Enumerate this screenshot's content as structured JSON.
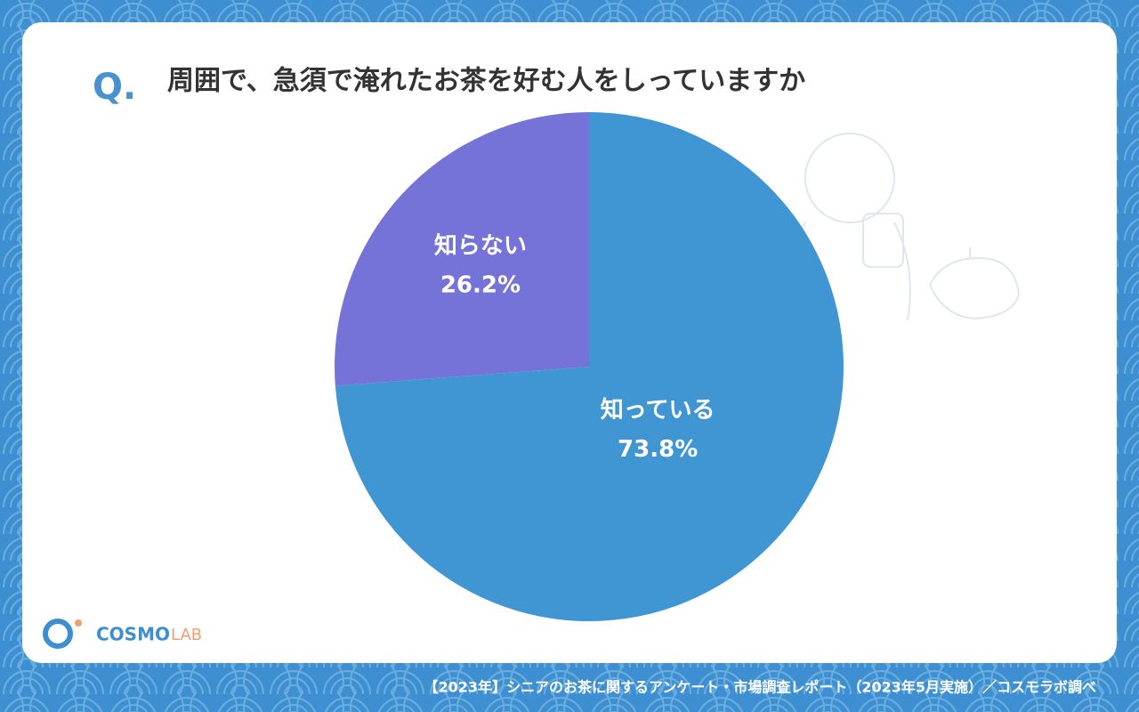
{
  "chart_data": {
    "type": "pie",
    "title": "周囲で、急須で淹れたお茶を好む人をしっていますか",
    "question_marker": "Q.",
    "categories": [
      "知っている",
      "知らない"
    ],
    "values": [
      73.8,
      26.2
    ],
    "value_labels": [
      "73.8%",
      "26.2%"
    ],
    "colors": [
      "#4096d3",
      "#7573d7"
    ]
  },
  "footer": "【2023年】シニアのお茶に関するアンケート・市場調査レポート（2023年5月実施）／コスモラボ調べ",
  "logo": {
    "word1": "COSMO",
    "word2": "LAB"
  }
}
